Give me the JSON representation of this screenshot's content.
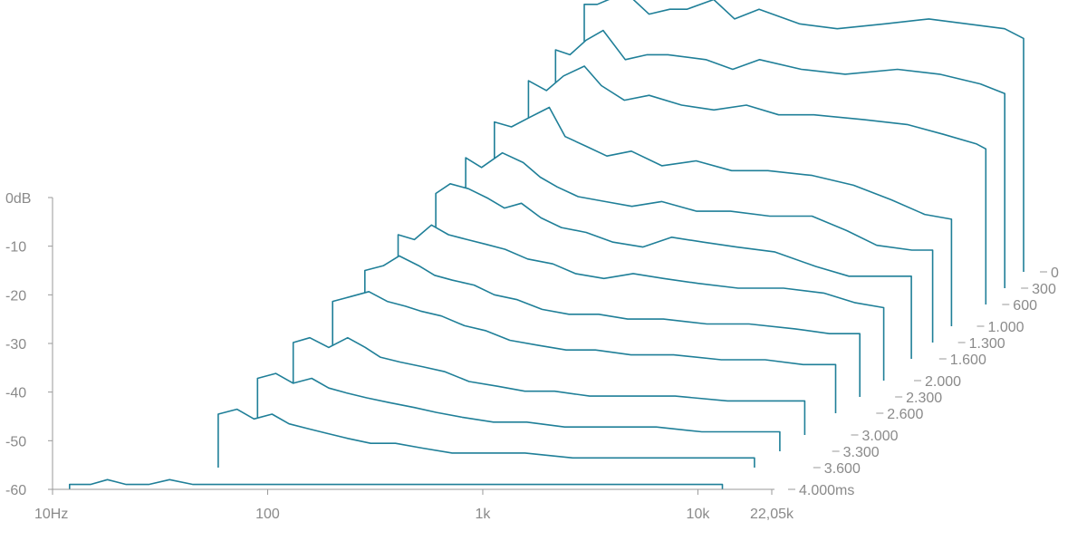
{
  "chart_data": {
    "type": "line",
    "chart_kind": "waterfall",
    "line_color": "#1f7f98",
    "axis_color": "#9a9a9a",
    "text_color": "#8a8a8a",
    "x_axis": {
      "scale": "log",
      "range": [
        10,
        22050
      ],
      "ticks": [
        "10Hz",
        "100",
        "1k",
        "10k",
        "22,05k"
      ]
    },
    "y_axis": {
      "range": [
        -60,
        0
      ],
      "ticks": [
        "0dB",
        "-10",
        "-20",
        "-30",
        "-40",
        "-50",
        "-60"
      ]
    },
    "time_labels": [
      "0",
      "300",
      "600",
      "1.000",
      "1.300",
      "1.600",
      "2.000",
      "2.300",
      "2.600",
      "3.000",
      "3.300",
      "3.600",
      "4.000ms"
    ],
    "grid": false,
    "legend": "none",
    "series": [
      {
        "time": 0,
        "points": [
          [
            200,
            -5
          ],
          [
            230,
            -5
          ],
          [
            260,
            -4
          ],
          [
            320,
            -3
          ],
          [
            400,
            -7
          ],
          [
            500,
            -6
          ],
          [
            600,
            -6
          ],
          [
            800,
            -4
          ],
          [
            1000,
            -8
          ],
          [
            1300,
            -6
          ],
          [
            2000,
            -9
          ],
          [
            3000,
            -10
          ],
          [
            5000,
            -9
          ],
          [
            8000,
            -8
          ],
          [
            12000,
            -9
          ],
          [
            18000,
            -10
          ],
          [
            22050,
            -12
          ]
        ]
      },
      {
        "time": 300,
        "points": [
          [
            180,
            -11
          ],
          [
            210,
            -12
          ],
          [
            250,
            -9
          ],
          [
            300,
            -7
          ],
          [
            380,
            -13
          ],
          [
            480,
            -12
          ],
          [
            600,
            -12
          ],
          [
            900,
            -13
          ],
          [
            1200,
            -15
          ],
          [
            1600,
            -13
          ],
          [
            2500,
            -15
          ],
          [
            4000,
            -16
          ],
          [
            7000,
            -15
          ],
          [
            11000,
            -16
          ],
          [
            17000,
            -18
          ],
          [
            22050,
            -20
          ]
        ]
      },
      {
        "time": 600,
        "points": [
          [
            165,
            -14
          ],
          [
            200,
            -16
          ],
          [
            240,
            -13
          ],
          [
            300,
            -11
          ],
          [
            360,
            -15
          ],
          [
            460,
            -18
          ],
          [
            600,
            -17
          ],
          [
            850,
            -19
          ],
          [
            1200,
            -20
          ],
          [
            1700,
            -19
          ],
          [
            2400,
            -21
          ],
          [
            3500,
            -21
          ],
          [
            6000,
            -22
          ],
          [
            9500,
            -23
          ],
          [
            14000,
            -25
          ],
          [
            20000,
            -27
          ],
          [
            22050,
            -28
          ]
        ]
      },
      {
        "time": 1000,
        "points": [
          [
            150,
            -18
          ],
          [
            180,
            -19
          ],
          [
            220,
            -17
          ],
          [
            270,
            -15
          ],
          [
            320,
            -21
          ],
          [
            400,
            -23
          ],
          [
            500,
            -25
          ],
          [
            650,
            -24
          ],
          [
            900,
            -27
          ],
          [
            1300,
            -26
          ],
          [
            1900,
            -28
          ],
          [
            2800,
            -28
          ],
          [
            4500,
            -29
          ],
          [
            7000,
            -31
          ],
          [
            10500,
            -34
          ],
          [
            15000,
            -37
          ],
          [
            20000,
            -38
          ]
        ]
      },
      {
        "time": 1300,
        "points": [
          [
            135,
            -22
          ],
          [
            160,
            -24
          ],
          [
            200,
            -21
          ],
          [
            250,
            -23
          ],
          [
            300,
            -26
          ],
          [
            360,
            -28
          ],
          [
            450,
            -30
          ],
          [
            600,
            -31
          ],
          [
            800,
            -32
          ],
          [
            1100,
            -31
          ],
          [
            1600,
            -33
          ],
          [
            2300,
            -33
          ],
          [
            3500,
            -34
          ],
          [
            5500,
            -34
          ],
          [
            8000,
            -37
          ],
          [
            11000,
            -40
          ],
          [
            16000,
            -41
          ],
          [
            20000,
            -41
          ]
        ]
      },
      {
        "time": 1600,
        "points": [
          [
            120,
            -26
          ],
          [
            140,
            -24
          ],
          [
            170,
            -25
          ],
          [
            210,
            -27
          ],
          [
            250,
            -29
          ],
          [
            300,
            -28
          ],
          [
            370,
            -31
          ],
          [
            460,
            -33
          ],
          [
            600,
            -34
          ],
          [
            800,
            -36
          ],
          [
            1100,
            -37
          ],
          [
            1500,
            -35
          ],
          [
            2100,
            -36
          ],
          [
            3000,
            -37
          ],
          [
            4500,
            -38
          ],
          [
            7000,
            -41
          ],
          [
            10000,
            -43
          ],
          [
            15000,
            -43
          ],
          [
            19500,
            -43
          ]
        ]
      },
      {
        "time": 2000,
        "points": [
          [
            105,
            -30
          ],
          [
            125,
            -31
          ],
          [
            150,
            -28
          ],
          [
            180,
            -30
          ],
          [
            220,
            -31
          ],
          [
            270,
            -32
          ],
          [
            330,
            -33
          ],
          [
            420,
            -35
          ],
          [
            550,
            -36
          ],
          [
            700,
            -38
          ],
          [
            950,
            -39
          ],
          [
            1300,
            -38
          ],
          [
            1800,
            -39
          ],
          [
            2600,
            -40
          ],
          [
            4000,
            -41
          ],
          [
            6500,
            -41
          ],
          [
            10000,
            -42
          ],
          [
            14000,
            -44
          ],
          [
            19000,
            -45
          ]
        ]
      },
      {
        "time": 2300,
        "points": [
          [
            90,
            -34
          ],
          [
            110,
            -33
          ],
          [
            130,
            -31
          ],
          [
            160,
            -33
          ],
          [
            190,
            -35
          ],
          [
            230,
            -36
          ],
          [
            290,
            -37
          ],
          [
            360,
            -39
          ],
          [
            460,
            -40
          ],
          [
            600,
            -42
          ],
          [
            800,
            -43
          ],
          [
            1100,
            -43
          ],
          [
            1500,
            -44
          ],
          [
            2200,
            -44
          ],
          [
            3500,
            -45
          ],
          [
            5500,
            -45
          ],
          [
            9000,
            -46
          ],
          [
            13000,
            -47
          ],
          [
            18000,
            -47
          ]
        ]
      },
      {
        "time": 2600,
        "points": [
          [
            78,
            -37
          ],
          [
            95,
            -36
          ],
          [
            115,
            -35
          ],
          [
            140,
            -37
          ],
          [
            170,
            -38
          ],
          [
            200,
            -39
          ],
          [
            250,
            -40
          ],
          [
            320,
            -42
          ],
          [
            400,
            -43
          ],
          [
            520,
            -45
          ],
          [
            700,
            -46
          ],
          [
            950,
            -47
          ],
          [
            1300,
            -47
          ],
          [
            1900,
            -48
          ],
          [
            3000,
            -48
          ],
          [
            5000,
            -49
          ],
          [
            8000,
            -49
          ],
          [
            12000,
            -50
          ],
          [
            17000,
            -50
          ]
        ]
      },
      {
        "time": 3000,
        "points": [
          [
            67,
            -41
          ],
          [
            80,
            -40
          ],
          [
            98,
            -42
          ],
          [
            120,
            -40
          ],
          [
            145,
            -42
          ],
          [
            170,
            -44
          ],
          [
            210,
            -45
          ],
          [
            270,
            -46
          ],
          [
            340,
            -47
          ],
          [
            440,
            -49
          ],
          [
            600,
            -50
          ],
          [
            800,
            -51
          ],
          [
            1100,
            -51
          ],
          [
            1600,
            -52
          ],
          [
            2500,
            -52
          ],
          [
            4000,
            -52
          ],
          [
            7000,
            -53
          ],
          [
            11000,
            -53
          ],
          [
            16000,
            -53
          ]
        ]
      },
      {
        "time": 3300,
        "points": [
          [
            56,
            -45
          ],
          [
            68,
            -44
          ],
          [
            82,
            -46
          ],
          [
            100,
            -45
          ],
          [
            120,
            -47
          ],
          [
            145,
            -48
          ],
          [
            180,
            -49
          ],
          [
            230,
            -50
          ],
          [
            300,
            -51
          ],
          [
            380,
            -52
          ],
          [
            500,
            -53
          ],
          [
            700,
            -54
          ],
          [
            1000,
            -54
          ],
          [
            1500,
            -55
          ],
          [
            2400,
            -55
          ],
          [
            4000,
            -55
          ],
          [
            6500,
            -56
          ],
          [
            10000,
            -56
          ],
          [
            15000,
            -56
          ]
        ]
      },
      {
        "time": 3600,
        "points": [
          [
            45,
            -49
          ],
          [
            55,
            -48
          ],
          [
            66,
            -50
          ],
          [
            80,
            -49
          ],
          [
            96,
            -51
          ],
          [
            118,
            -52
          ],
          [
            145,
            -53
          ],
          [
            180,
            -54
          ],
          [
            230,
            -55
          ],
          [
            300,
            -55
          ],
          [
            400,
            -56
          ],
          [
            550,
            -57
          ],
          [
            800,
            -57
          ],
          [
            1200,
            -57
          ],
          [
            2000,
            -58
          ],
          [
            3500,
            -58
          ],
          [
            6000,
            -58
          ],
          [
            9500,
            -58
          ],
          [
            14000,
            -58
          ]
        ]
      },
      {
        "time": 4000,
        "points": [
          [
            12,
            -59
          ],
          [
            15,
            -59
          ],
          [
            18,
            -58
          ],
          [
            22,
            -59
          ],
          [
            28,
            -59
          ],
          [
            35,
            -58
          ],
          [
            45,
            -59
          ],
          [
            60,
            -59
          ],
          [
            90,
            -59
          ],
          [
            150,
            -59
          ],
          [
            300,
            -59
          ],
          [
            600,
            -59
          ],
          [
            1200,
            -59
          ],
          [
            2500,
            -59
          ],
          [
            5000,
            -59
          ],
          [
            9000,
            -59
          ],
          [
            13000,
            -59
          ]
        ]
      }
    ]
  }
}
